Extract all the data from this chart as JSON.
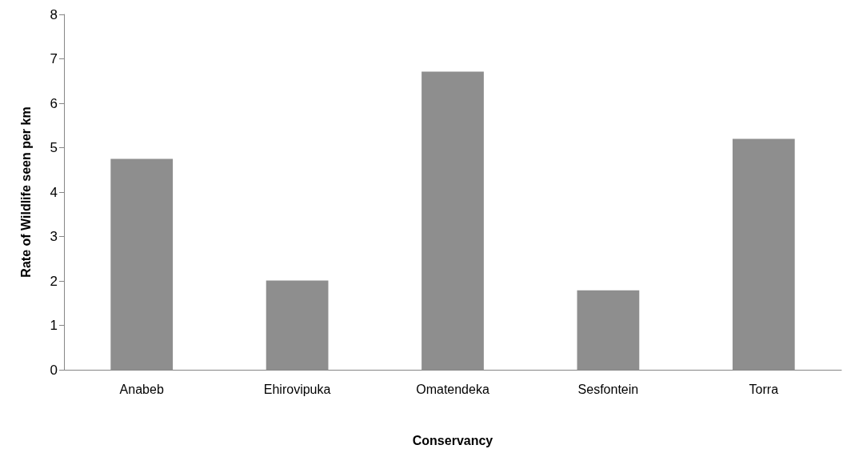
{
  "chart_data": {
    "type": "bar",
    "xlabel": "Conservancy",
    "ylabel": "Rate of Wildlife seen per km",
    "categories": [
      "Anabeb",
      "Ehirovipuka",
      "Omatendeka",
      "Sesfontein",
      "Torra"
    ],
    "values": [
      4.75,
      2.01,
      6.71,
      1.79,
      5.2
    ],
    "color": "#8e8e8e",
    "ylim": [
      0,
      8
    ],
    "yticks": [
      0,
      1,
      2,
      3,
      4,
      5,
      6,
      7,
      8
    ],
    "grid": false
  }
}
